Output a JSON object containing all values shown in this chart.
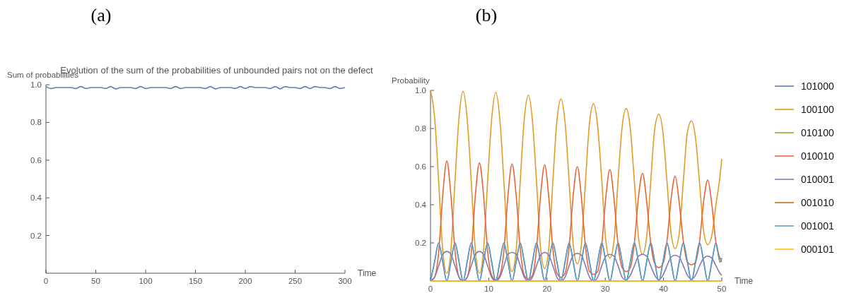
{
  "chart_data": [
    {
      "type": "line",
      "title": "Evolution of the sum of the probabilities of unbounded pairs not on the defect",
      "annotations": [
        "(a)"
      ],
      "xlabel": "Time",
      "ylabel": "Sum of probabilities",
      "xlim": [
        0,
        300
      ],
      "ylim": [
        0,
        1
      ],
      "xticks": [
        0,
        50,
        100,
        150,
        200,
        250,
        300
      ],
      "yticks": [
        {
          "value": 0.2,
          "label": "0.2"
        },
        {
          "value": 0.4,
          "label": "0.4"
        },
        {
          "value": 0.6,
          "label": "0.6"
        },
        {
          "value": 0.8,
          "label": "0.8"
        },
        {
          "value": 1,
          "label": "1.0"
        }
      ],
      "x": [
        0,
        5,
        10,
        15,
        20,
        25,
        30,
        35,
        40,
        45,
        50,
        55,
        60,
        65,
        70,
        75,
        80,
        85,
        90,
        95,
        100,
        105,
        110,
        115,
        120,
        125,
        130,
        135,
        140,
        145,
        150,
        155,
        160,
        165,
        170,
        175,
        180,
        185,
        190,
        195,
        200,
        205,
        210,
        215,
        220,
        225,
        230,
        235,
        240,
        245,
        250,
        255,
        260,
        265,
        270,
        275,
        280,
        285,
        290,
        295,
        300
      ],
      "series": [
        {
          "color": "#5e81b5",
          "values": [
            0.99,
            0.98,
            0.985,
            0.985,
            0.985,
            0.985,
            0.98,
            0.99,
            0.98,
            0.985,
            0.985,
            0.985,
            0.98,
            0.99,
            0.978,
            0.985,
            0.985,
            0.985,
            0.98,
            0.99,
            0.98,
            0.985,
            0.985,
            0.985,
            0.985,
            0.98,
            0.99,
            0.98,
            0.985,
            0.985,
            0.985,
            0.985,
            0.98,
            0.99,
            0.978,
            0.985,
            0.985,
            0.985,
            0.98,
            0.99,
            0.98,
            0.99,
            0.985,
            0.985,
            0.985,
            0.98,
            0.99,
            0.978,
            0.99,
            0.985,
            0.985,
            0.98,
            0.99,
            0.98,
            0.99,
            0.985,
            0.985,
            0.98,
            0.99,
            0.98,
            0.985
          ]
        }
      ]
    },
    {
      "type": "line",
      "annotations": [
        "(b)"
      ],
      "xlabel": "Time",
      "ylabel": "Probability",
      "legend": "right",
      "xlim": [
        0,
        50
      ],
      "ylim": [
        0,
        1
      ],
      "xticks": [
        0,
        10,
        20,
        30,
        40,
        50
      ],
      "yticks": [
        {
          "value": 0.2,
          "label": "0.2"
        },
        {
          "value": 0.4,
          "label": "0.4"
        },
        {
          "value": 0.6,
          "label": "0.6"
        },
        {
          "value": 0.8,
          "label": "0.8"
        },
        {
          "value": 1,
          "label": "1.0"
        }
      ],
      "x": [
        0,
        0.7,
        1.4,
        2.1,
        2.8,
        3.5,
        4.2,
        4.9,
        5.6,
        6.3,
        7,
        7.7,
        8.4,
        9.1,
        9.8,
        10.5,
        11.2,
        11.9,
        12.6,
        13.3,
        14,
        14.7,
        15.4,
        16.1,
        16.8,
        17.5,
        18.2,
        18.9,
        19.6,
        20.3,
        21,
        21.7,
        22.4,
        23.1,
        23.8,
        24.5,
        25.2,
        25.9,
        26.6,
        27.3,
        28,
        28.7,
        29.4,
        30.1,
        30.8,
        31.5,
        32.2,
        32.9,
        33.6,
        34.3,
        35,
        35.7,
        36.4,
        37.1,
        37.8,
        38.5,
        39.2,
        39.9,
        40.6,
        41.3,
        42,
        42.7,
        43.4,
        44.1,
        44.8,
        45.5,
        46.2,
        46.9,
        47.6,
        48.3,
        49,
        49.7,
        50
      ],
      "series": [
        {
          "name": "101000",
          "color": "#5e81b5",
          "values": [
            0,
            0.1,
            0.2,
            0.1,
            0,
            0.1,
            0.2,
            0.1,
            0,
            0.1,
            0.2,
            0.1,
            0,
            0.1,
            0.2,
            0.1,
            0,
            0.1,
            0.2,
            0.1,
            0,
            0.1,
            0.2,
            0.1,
            0,
            0.1,
            0.2,
            0.1,
            0,
            0.1,
            0.2,
            0.1,
            0,
            0.1,
            0.2,
            0.1,
            0,
            0.1,
            0.2,
            0.1,
            0,
            0.1,
            0.2,
            0.1,
            0,
            0.1,
            0.2,
            0.1,
            0,
            0.1,
            0.2,
            0.1,
            0,
            0.1,
            0.2,
            0.1,
            0,
            0.1,
            0.2,
            0.1,
            0,
            0.1,
            0.2,
            0.1,
            0,
            0.1,
            0.2,
            0.1,
            0,
            0.1,
            0.2,
            0.1,
            0.12
          ]
        },
        {
          "name": "100100",
          "color": "#e19c24",
          "values": [
            1,
            0.86,
            0.52,
            0.16,
            0.04,
            0.16,
            0.52,
            0.86,
            0.995,
            0.85,
            0.52,
            0.16,
            0.04,
            0.16,
            0.52,
            0.85,
            0.99,
            0.85,
            0.52,
            0.16,
            0.05,
            0.16,
            0.52,
            0.85,
            0.975,
            0.84,
            0.52,
            0.17,
            0.065,
            0.17,
            0.52,
            0.84,
            0.955,
            0.83,
            0.52,
            0.19,
            0.09,
            0.19,
            0.52,
            0.83,
            0.93,
            0.81,
            0.53,
            0.21,
            0.12,
            0.21,
            0.53,
            0.81,
            0.905,
            0.8,
            0.52,
            0.23,
            0.14,
            0.23,
            0.52,
            0.8,
            0.875,
            0.78,
            0.52,
            0.25,
            0.17,
            0.25,
            0.52,
            0.78,
            0.84,
            0.75,
            0.51,
            0.26,
            0.19,
            0.24,
            0.4,
            0.55,
            0.64
          ]
        },
        {
          "name": "010100",
          "color": "#8fb032",
          "values": [
            null,
            null,
            null,
            null,
            null,
            null,
            null,
            null,
            null,
            null,
            null,
            null,
            null,
            null,
            null,
            null,
            null,
            null,
            null,
            null,
            null,
            null,
            null,
            null,
            null,
            null,
            null,
            null,
            null,
            null,
            null,
            null,
            null,
            null,
            null,
            null,
            null,
            null,
            null,
            null,
            null,
            null,
            null,
            null,
            null,
            null,
            null,
            null,
            null,
            null,
            null,
            null,
            null,
            null,
            null,
            null,
            null,
            null,
            null,
            null,
            null,
            null,
            null,
            null,
            null,
            null,
            null,
            null,
            null,
            null,
            null,
            null,
            null
          ]
        },
        {
          "name": "010010",
          "color": "#eb6235",
          "values": [
            0,
            0.02,
            0.15,
            0.45,
            0.63,
            0.45,
            0.16,
            0.02,
            0,
            0.02,
            0.15,
            0.45,
            0.62,
            0.45,
            0.16,
            0.03,
            0.005,
            0.03,
            0.16,
            0.45,
            0.615,
            0.45,
            0.17,
            0.03,
            0.01,
            0.03,
            0.17,
            0.45,
            0.61,
            0.44,
            0.17,
            0.04,
            0.02,
            0.04,
            0.18,
            0.45,
            0.6,
            0.44,
            0.18,
            0.05,
            0.035,
            0.05,
            0.19,
            0.44,
            0.585,
            0.43,
            0.19,
            0.07,
            0.05,
            0.07,
            0.2,
            0.44,
            0.565,
            0.42,
            0.2,
            0.09,
            0.07,
            0.09,
            0.21,
            0.43,
            0.55,
            0.41,
            0.21,
            0.1,
            0.085,
            0.1,
            0.21,
            0.42,
            0.53,
            0.4,
            0.2,
            0.12,
            0.1
          ]
        },
        {
          "name": "010001",
          "color": "#8778b3",
          "values": [
            0,
            0.02,
            0.08,
            0.14,
            0.155,
            0.14,
            0.08,
            0.02,
            0,
            0.02,
            0.08,
            0.14,
            0.155,
            0.14,
            0.08,
            0.02,
            0,
            0.02,
            0.08,
            0.14,
            0.15,
            0.14,
            0.08,
            0.02,
            0,
            0.02,
            0.08,
            0.135,
            0.15,
            0.135,
            0.08,
            0.02,
            0,
            0.02,
            0.08,
            0.135,
            0.145,
            0.135,
            0.08,
            0.02,
            0,
            0.02,
            0.08,
            0.13,
            0.14,
            0.13,
            0.08,
            0.02,
            0.005,
            0.03,
            0.08,
            0.13,
            0.14,
            0.13,
            0.08,
            0.03,
            0.005,
            0.03,
            0.08,
            0.125,
            0.135,
            0.125,
            0.08,
            0.03,
            0.01,
            0.03,
            0.08,
            0.12,
            0.13,
            0.12,
            0.08,
            0.04,
            0.03
          ]
        },
        {
          "name": "001010",
          "color": "#c56e1a",
          "values": [
            null,
            null,
            null,
            null,
            null,
            null,
            null,
            null,
            null,
            null,
            null,
            null,
            null,
            null,
            null,
            null,
            null,
            null,
            null,
            null,
            null,
            null,
            null,
            null,
            null,
            null,
            null,
            null,
            null,
            null,
            null,
            null,
            null,
            null,
            null,
            null,
            null,
            null,
            null,
            null,
            null,
            null,
            null,
            null,
            null,
            null,
            null,
            null,
            null,
            null,
            null,
            null,
            null,
            null,
            null,
            null,
            null,
            null,
            null,
            null,
            null,
            null,
            null,
            null,
            null,
            null,
            null,
            null,
            null,
            null,
            null,
            null,
            null
          ]
        },
        {
          "name": "001001",
          "color": "#5d9ec7",
          "values": [
            0,
            0.1,
            0.2,
            0.1,
            0,
            0.1,
            0.2,
            0.1,
            0,
            0.1,
            0.2,
            0.1,
            0,
            0.1,
            0.2,
            0.1,
            0,
            0.1,
            0.2,
            0.1,
            0,
            0.1,
            0.2,
            0.1,
            0,
            0.1,
            0.2,
            0.1,
            0,
            0.1,
            0.2,
            0.1,
            0,
            0.1,
            0.2,
            0.1,
            0,
            0.1,
            0.2,
            0.1,
            0,
            0.1,
            0.2,
            0.1,
            0,
            0.1,
            0.2,
            0.1,
            0,
            0.1,
            0.2,
            0.1,
            0,
            0.1,
            0.2,
            0.1,
            0,
            0.1,
            0.2,
            0.1,
            0,
            0.1,
            0.2,
            0.1,
            0,
            0.1,
            0.2,
            0.1,
            0,
            0.1,
            0.2,
            0.1,
            0.12
          ]
        },
        {
          "name": "000101",
          "color": "#ffbf00",
          "values": [
            0,
            0,
            0,
            0,
            0,
            0,
            0,
            0,
            0,
            0,
            0,
            0,
            0,
            0,
            0,
            0,
            0,
            0,
            0,
            0,
            0,
            0,
            0,
            0,
            0,
            0,
            0,
            0,
            0,
            0,
            0,
            0,
            0,
            0,
            0,
            0,
            0,
            0,
            0,
            0,
            0,
            0,
            0,
            0,
            0,
            0,
            0,
            0,
            0,
            0,
            0,
            0,
            0,
            0,
            0,
            0,
            0,
            0,
            0,
            0,
            0,
            0,
            0,
            0,
            0,
            0,
            0,
            0,
            0,
            0,
            0,
            0,
            0
          ]
        }
      ]
    }
  ]
}
